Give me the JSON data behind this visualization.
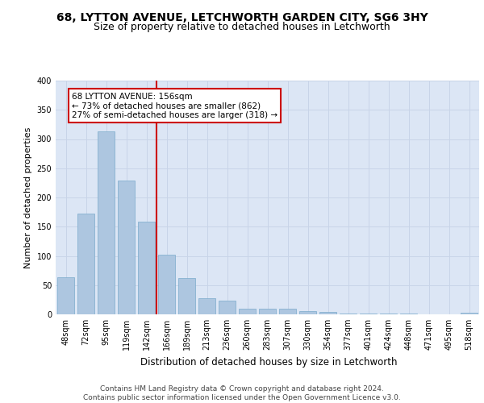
{
  "title1": "68, LYTTON AVENUE, LETCHWORTH GARDEN CITY, SG6 3HY",
  "title2": "Size of property relative to detached houses in Letchworth",
  "xlabel": "Distribution of detached houses by size in Letchworth",
  "ylabel": "Number of detached properties",
  "categories": [
    "48sqm",
    "72sqm",
    "95sqm",
    "119sqm",
    "142sqm",
    "166sqm",
    "189sqm",
    "213sqm",
    "236sqm",
    "260sqm",
    "283sqm",
    "307sqm",
    "330sqm",
    "354sqm",
    "377sqm",
    "401sqm",
    "424sqm",
    "448sqm",
    "471sqm",
    "495sqm",
    "518sqm"
  ],
  "values": [
    63,
    173,
    313,
    229,
    158,
    102,
    62,
    27,
    23,
    9,
    10,
    10,
    5,
    4,
    2,
    1,
    1,
    1,
    0,
    0,
    3
  ],
  "bar_color": "#adc6e0",
  "bar_edgecolor": "#7aaacb",
  "vline_color": "#cc0000",
  "annotation_text": "68 LYTTON AVENUE: 156sqm\n← 73% of detached houses are smaller (862)\n27% of semi-detached houses are larger (318) →",
  "annotation_box_color": "white",
  "annotation_box_edgecolor": "#cc0000",
  "ylim": [
    0,
    400
  ],
  "yticks": [
    0,
    50,
    100,
    150,
    200,
    250,
    300,
    350,
    400
  ],
  "grid_color": "#c8d4e8",
  "background_color": "#dce6f5",
  "footer": "Contains HM Land Registry data © Crown copyright and database right 2024.\nContains public sector information licensed under the Open Government Licence v3.0.",
  "title1_fontsize": 10,
  "title2_fontsize": 9,
  "xlabel_fontsize": 8.5,
  "ylabel_fontsize": 8,
  "tick_fontsize": 7,
  "footer_fontsize": 6.5,
  "ann_fontsize": 7.5
}
